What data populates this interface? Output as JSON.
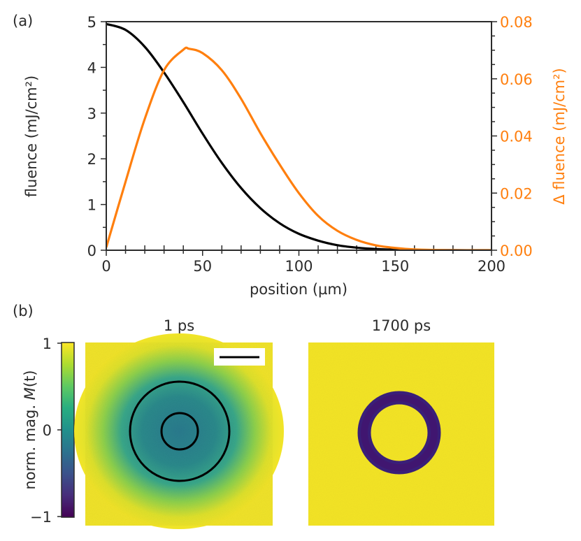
{
  "panel_a": {
    "label": "(a)",
    "xlabel": "position (µm)",
    "ylabel_left": "fluence (mJ/cm²)",
    "ylabel_right": "Δ fluence (mJ/cm²)",
    "x_ticks": [
      "0",
      "50",
      "100",
      "150",
      "200"
    ],
    "y_left_ticks": [
      "0",
      "1",
      "2",
      "3",
      "4",
      "5"
    ],
    "y_right_ticks": [
      "0.00",
      "0.02",
      "0.04",
      "0.06",
      "0.08"
    ]
  },
  "panel_b": {
    "label": "(b)",
    "colorbar_label": "norm. mag. M(t)",
    "colorbar_label_prefix": "norm. mag. ",
    "colorbar_label_var": "M",
    "colorbar_label_arg": "(t)",
    "colorbar_ticks": [
      "1",
      "0",
      "−1"
    ],
    "image_titles": [
      "1 ps",
      "1700 ps"
    ]
  },
  "colors": {
    "fluence": "#000000",
    "delta_fluence": "#ff7f0e",
    "axis_text": "#2b2b2b",
    "viridis_low": "#440154",
    "viridis_mid": "#21918c",
    "viridis_high": "#fde725"
  },
  "chart_data": [
    {
      "type": "line",
      "title": "",
      "xlabel": "position (µm)",
      "xlim": [
        0,
        200
      ],
      "series": [
        {
          "name": "fluence",
          "axis": "left",
          "ylim": [
            0,
            5
          ],
          "x": [
            0,
            10,
            20,
            30,
            40,
            50,
            60,
            70,
            80,
            90,
            100,
            110,
            120,
            130,
            140,
            150,
            160,
            180,
            200
          ],
          "values": [
            4.95,
            4.82,
            4.45,
            3.89,
            3.24,
            2.55,
            1.91,
            1.36,
            0.92,
            0.59,
            0.36,
            0.21,
            0.11,
            0.056,
            0.027,
            0.012,
            0.005,
            0.001,
            0.0
          ]
        },
        {
          "name": "Δ fluence",
          "axis": "right",
          "ylim": [
            0,
            0.08
          ],
          "x": [
            0,
            10,
            20,
            30,
            40,
            43,
            50,
            60,
            70,
            80,
            90,
            100,
            110,
            120,
            130,
            140,
            150,
            160,
            180,
            200
          ],
          "values": [
            0.001,
            0.024,
            0.046,
            0.063,
            0.0702,
            0.0705,
            0.069,
            0.063,
            0.053,
            0.041,
            0.03,
            0.02,
            0.012,
            0.0068,
            0.0036,
            0.0017,
            0.0008,
            0.0003,
            0.0,
            0.0
          ]
        }
      ]
    },
    {
      "type": "heatmap",
      "title": "1 ps",
      "colorscale": "viridis",
      "clim": [
        -1,
        1
      ],
      "scale_bar": true,
      "overlay_circles": 2
    },
    {
      "type": "heatmap",
      "title": "1700 ps",
      "colorscale": "viridis",
      "clim": [
        -1,
        1
      ],
      "feature": "dark ring (switched magnetization)"
    }
  ]
}
